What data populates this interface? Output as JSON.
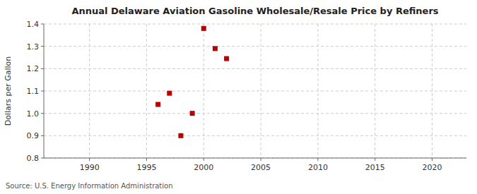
{
  "chart_data": {
    "type": "scatter",
    "title": "Annual Delaware Aviation Gasoline Wholesale/Resale Price by Refiners",
    "y_label": "Dollars per Gallon",
    "annotations": [
      "Source: U.S. Energy Information Administration"
    ],
    "x": [
      1996,
      1997,
      1998,
      1999,
      2000,
      2001,
      2002
    ],
    "values": [
      1.04,
      1.09,
      0.9,
      1.0,
      1.38,
      1.29,
      1.245
    ],
    "color": "#bb0000",
    "marker": "square",
    "xlim": [
      1986,
      2023
    ],
    "ylim": [
      0.8,
      1.4
    ],
    "xticks": [
      1990,
      1995,
      2000,
      2005,
      2010,
      2015,
      2020
    ],
    "yticks": [
      0.8,
      0.9,
      {
        "value": 1.0,
        "label": "1.0"
      },
      1.1,
      1.2,
      1.3,
      1.4
    ],
    "grid": true
  }
}
